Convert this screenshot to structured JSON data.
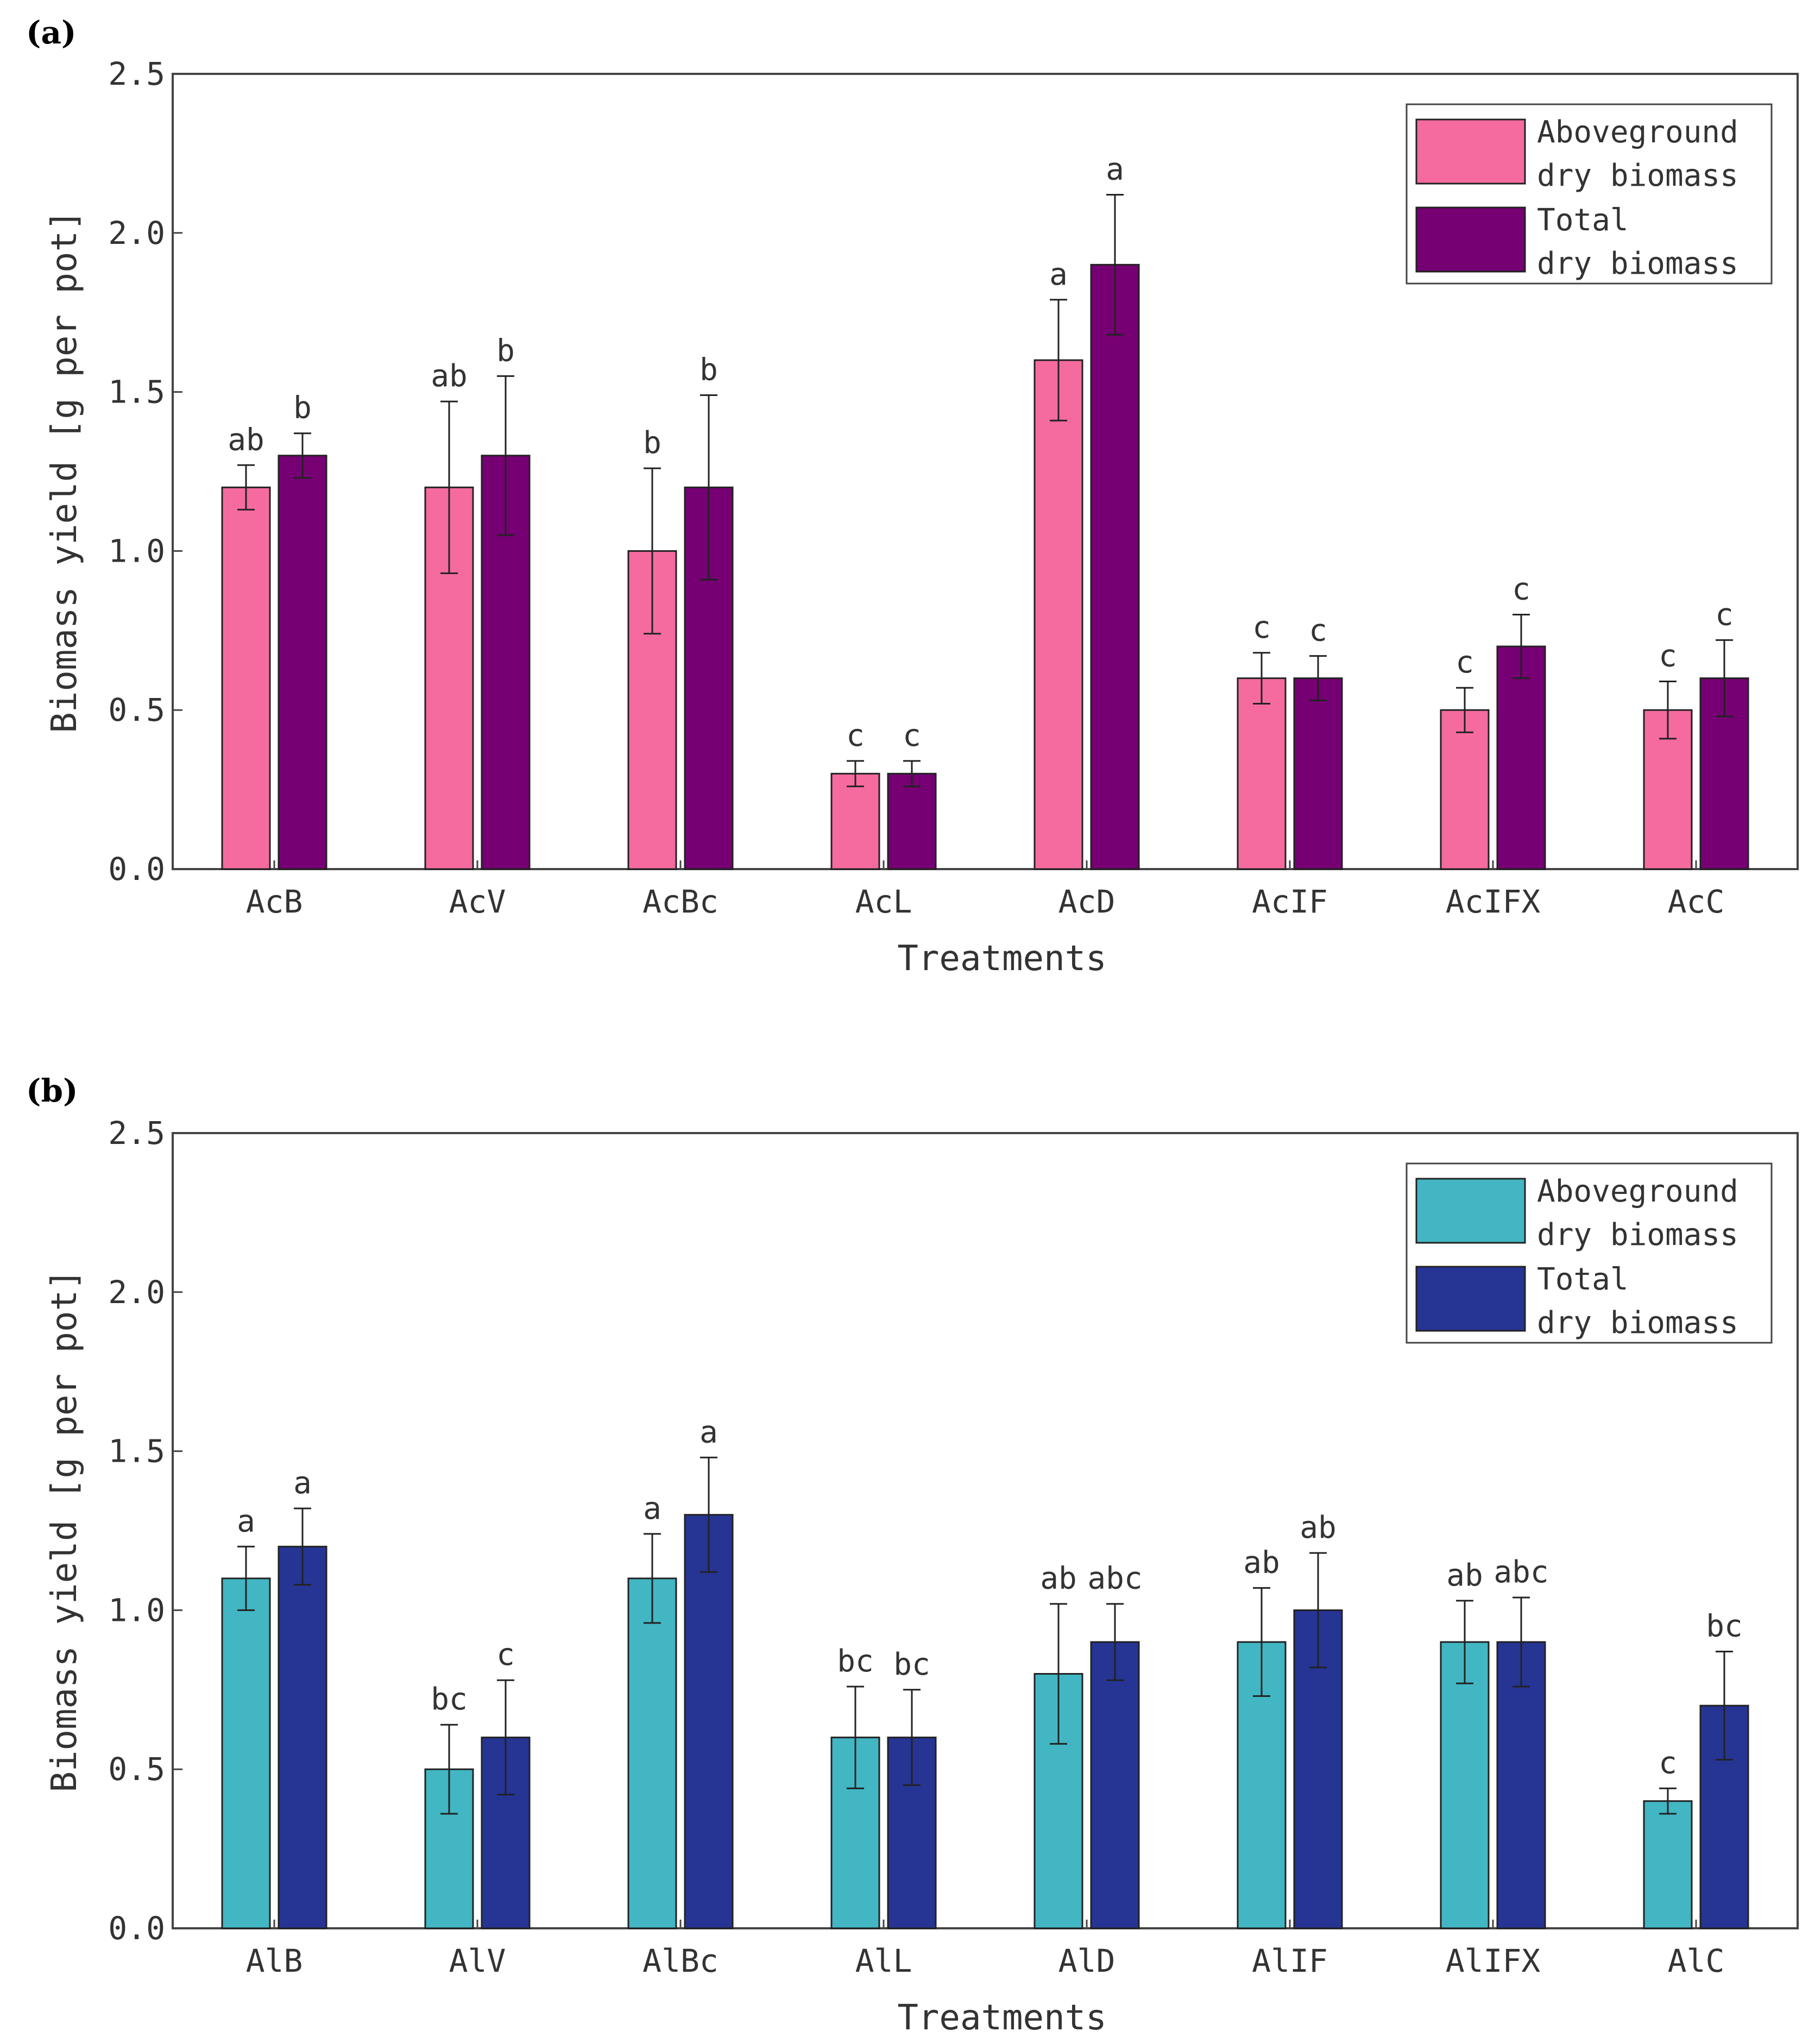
{
  "chart_data": [
    {
      "type": "bar",
      "panel_label": "(a)",
      "categories": [
        "AcB",
        "AcV",
        "AcBc",
        "AcL",
        "AcD",
        "AcIF",
        "AcIFX",
        "AcC"
      ],
      "series": [
        {
          "name": "Aboveground dry biomass",
          "legend_lines": [
            "Aboveground",
            "dry biomass"
          ],
          "color": "#f56b9f",
          "values": [
            1.2,
            1.2,
            1.0,
            0.3,
            1.6,
            0.6,
            0.5,
            0.5
          ],
          "errors": [
            0.07,
            0.27,
            0.26,
            0.04,
            0.19,
            0.08,
            0.07,
            0.09
          ],
          "letters": [
            "ab",
            "ab",
            "b",
            "c",
            "a",
            "c",
            "c",
            "c"
          ]
        },
        {
          "name": "Total dry biomass",
          "legend_lines": [
            "Total",
            "dry biomass"
          ],
          "color": "#760073",
          "values": [
            1.3,
            1.3,
            1.2,
            0.3,
            1.9,
            0.6,
            0.7,
            0.6
          ],
          "errors": [
            0.07,
            0.25,
            0.29,
            0.04,
            0.22,
            0.07,
            0.1,
            0.12
          ],
          "letters": [
            "b",
            "b",
            "b",
            "c",
            "a",
            "c",
            "c",
            "c"
          ]
        }
      ],
      "xlabel": "Treatments",
      "ylabel": "Biomass yield [g per pot]",
      "ylim": [
        0,
        2.5
      ],
      "yticks": [
        "0.0",
        "0.5",
        "1.0",
        "1.5",
        "2.0",
        "2.5"
      ],
      "legend_position": "top-right",
      "grid": false
    },
    {
      "type": "bar",
      "panel_label": "(b)",
      "categories": [
        "AlB",
        "AlV",
        "AlBc",
        "AlL",
        "AlD",
        "AlIF",
        "AlIFX",
        "AlC"
      ],
      "series": [
        {
          "name": "Aboveground dry biomass",
          "legend_lines": [
            "Aboveground",
            "dry biomass"
          ],
          "color": "#42b6c3",
          "values": [
            1.1,
            0.5,
            1.1,
            0.6,
            0.8,
            0.9,
            0.9,
            0.4
          ],
          "errors": [
            0.1,
            0.14,
            0.14,
            0.16,
            0.22,
            0.17,
            0.13,
            0.04
          ],
          "letters": [
            "a",
            "bc",
            "a",
            "bc",
            "ab",
            "ab",
            "ab",
            "c"
          ]
        },
        {
          "name": "Total dry biomass",
          "legend_lines": [
            "Total",
            "dry biomass"
          ],
          "color": "#263494",
          "values": [
            1.2,
            0.6,
            1.3,
            0.6,
            0.9,
            1.0,
            0.9,
            0.7
          ],
          "errors": [
            0.12,
            0.18,
            0.18,
            0.15,
            0.12,
            0.18,
            0.14,
            0.17
          ],
          "letters": [
            "a",
            "c",
            "a",
            "bc",
            "abc",
            "ab",
            "abc",
            "bc"
          ]
        }
      ],
      "xlabel": "Treatments",
      "ylabel": "Biomass yield [g per pot]",
      "ylim": [
        0,
        2.5
      ],
      "yticks": [
        "0.0",
        "0.5",
        "1.0",
        "1.5",
        "2.0",
        "2.5"
      ],
      "legend_position": "top-right",
      "grid": false
    }
  ]
}
